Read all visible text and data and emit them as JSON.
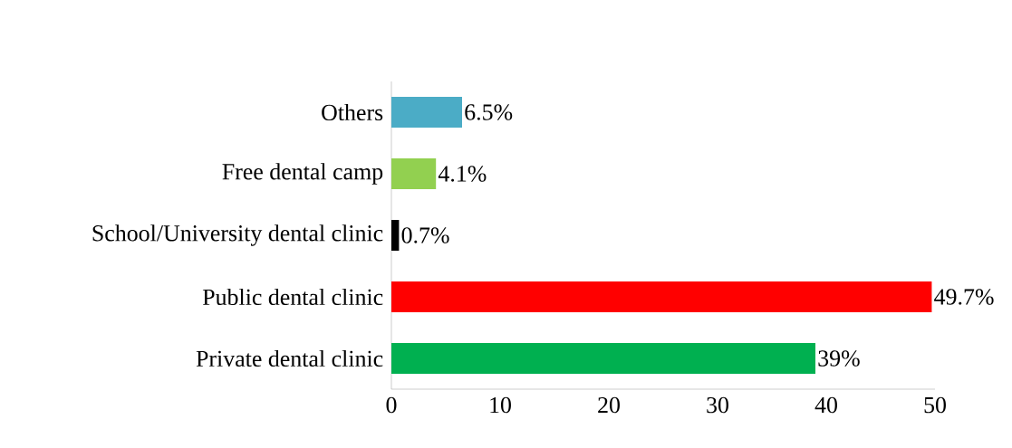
{
  "chart_data": {
    "type": "bar",
    "orientation": "horizontal",
    "categories": [
      "Others",
      "Free dental camp",
      "School/University dental clinic",
      "Public dental clinic",
      "Private dental clinic"
    ],
    "values": [
      6.5,
      4.1,
      0.7,
      49.7,
      39
    ],
    "colors": [
      "#4bacc6",
      "#92d050",
      "#000000",
      "#ff0000",
      "#00b050"
    ],
    "value_labels": [
      "6.5%",
      "4.1%",
      "0.7%",
      "49.7%",
      "39%"
    ],
    "xlim": [
      0,
      50
    ],
    "xticks": [
      0,
      10,
      20,
      30,
      40,
      50
    ],
    "grid": false
  }
}
